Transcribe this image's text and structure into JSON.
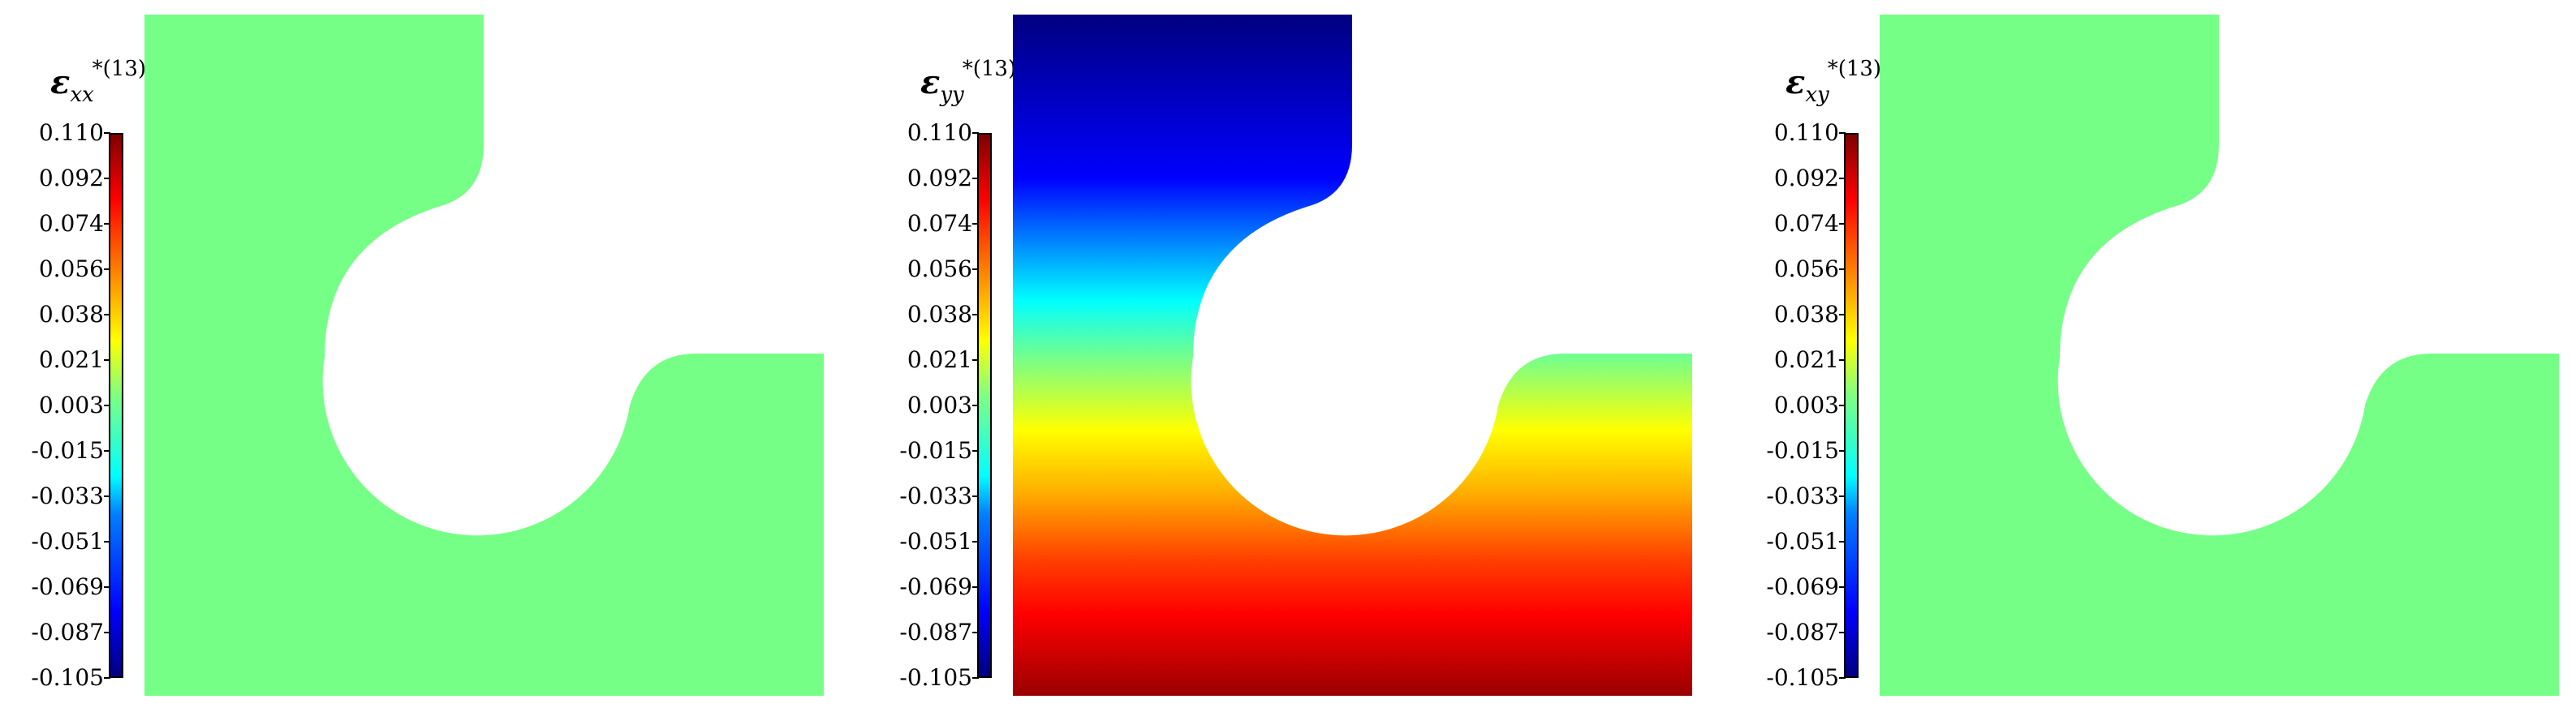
{
  "panels": [
    {
      "label_main": "ε",
      "label_sub": "xx",
      "label_sup": "*(13)",
      "field": "uniform",
      "uniform_color": "#76ff86"
    },
    {
      "label_main": "ε",
      "label_sub": "yy",
      "label_sup": "*(13)",
      "field": "vertical-gradient",
      "uniform_color": ""
    },
    {
      "label_main": "ε",
      "label_sub": "xy",
      "label_sup": "*(13)",
      "field": "uniform",
      "uniform_color": "#76ff86"
    }
  ],
  "colorbar": {
    "colormap": "jet",
    "ticks": [
      "0.110",
      "0.092",
      "0.074",
      "0.056",
      "0.038",
      "0.021",
      "0.003",
      "-0.015",
      "-0.033",
      "-0.051",
      "-0.069",
      "-0.087",
      "-0.105"
    ]
  }
}
